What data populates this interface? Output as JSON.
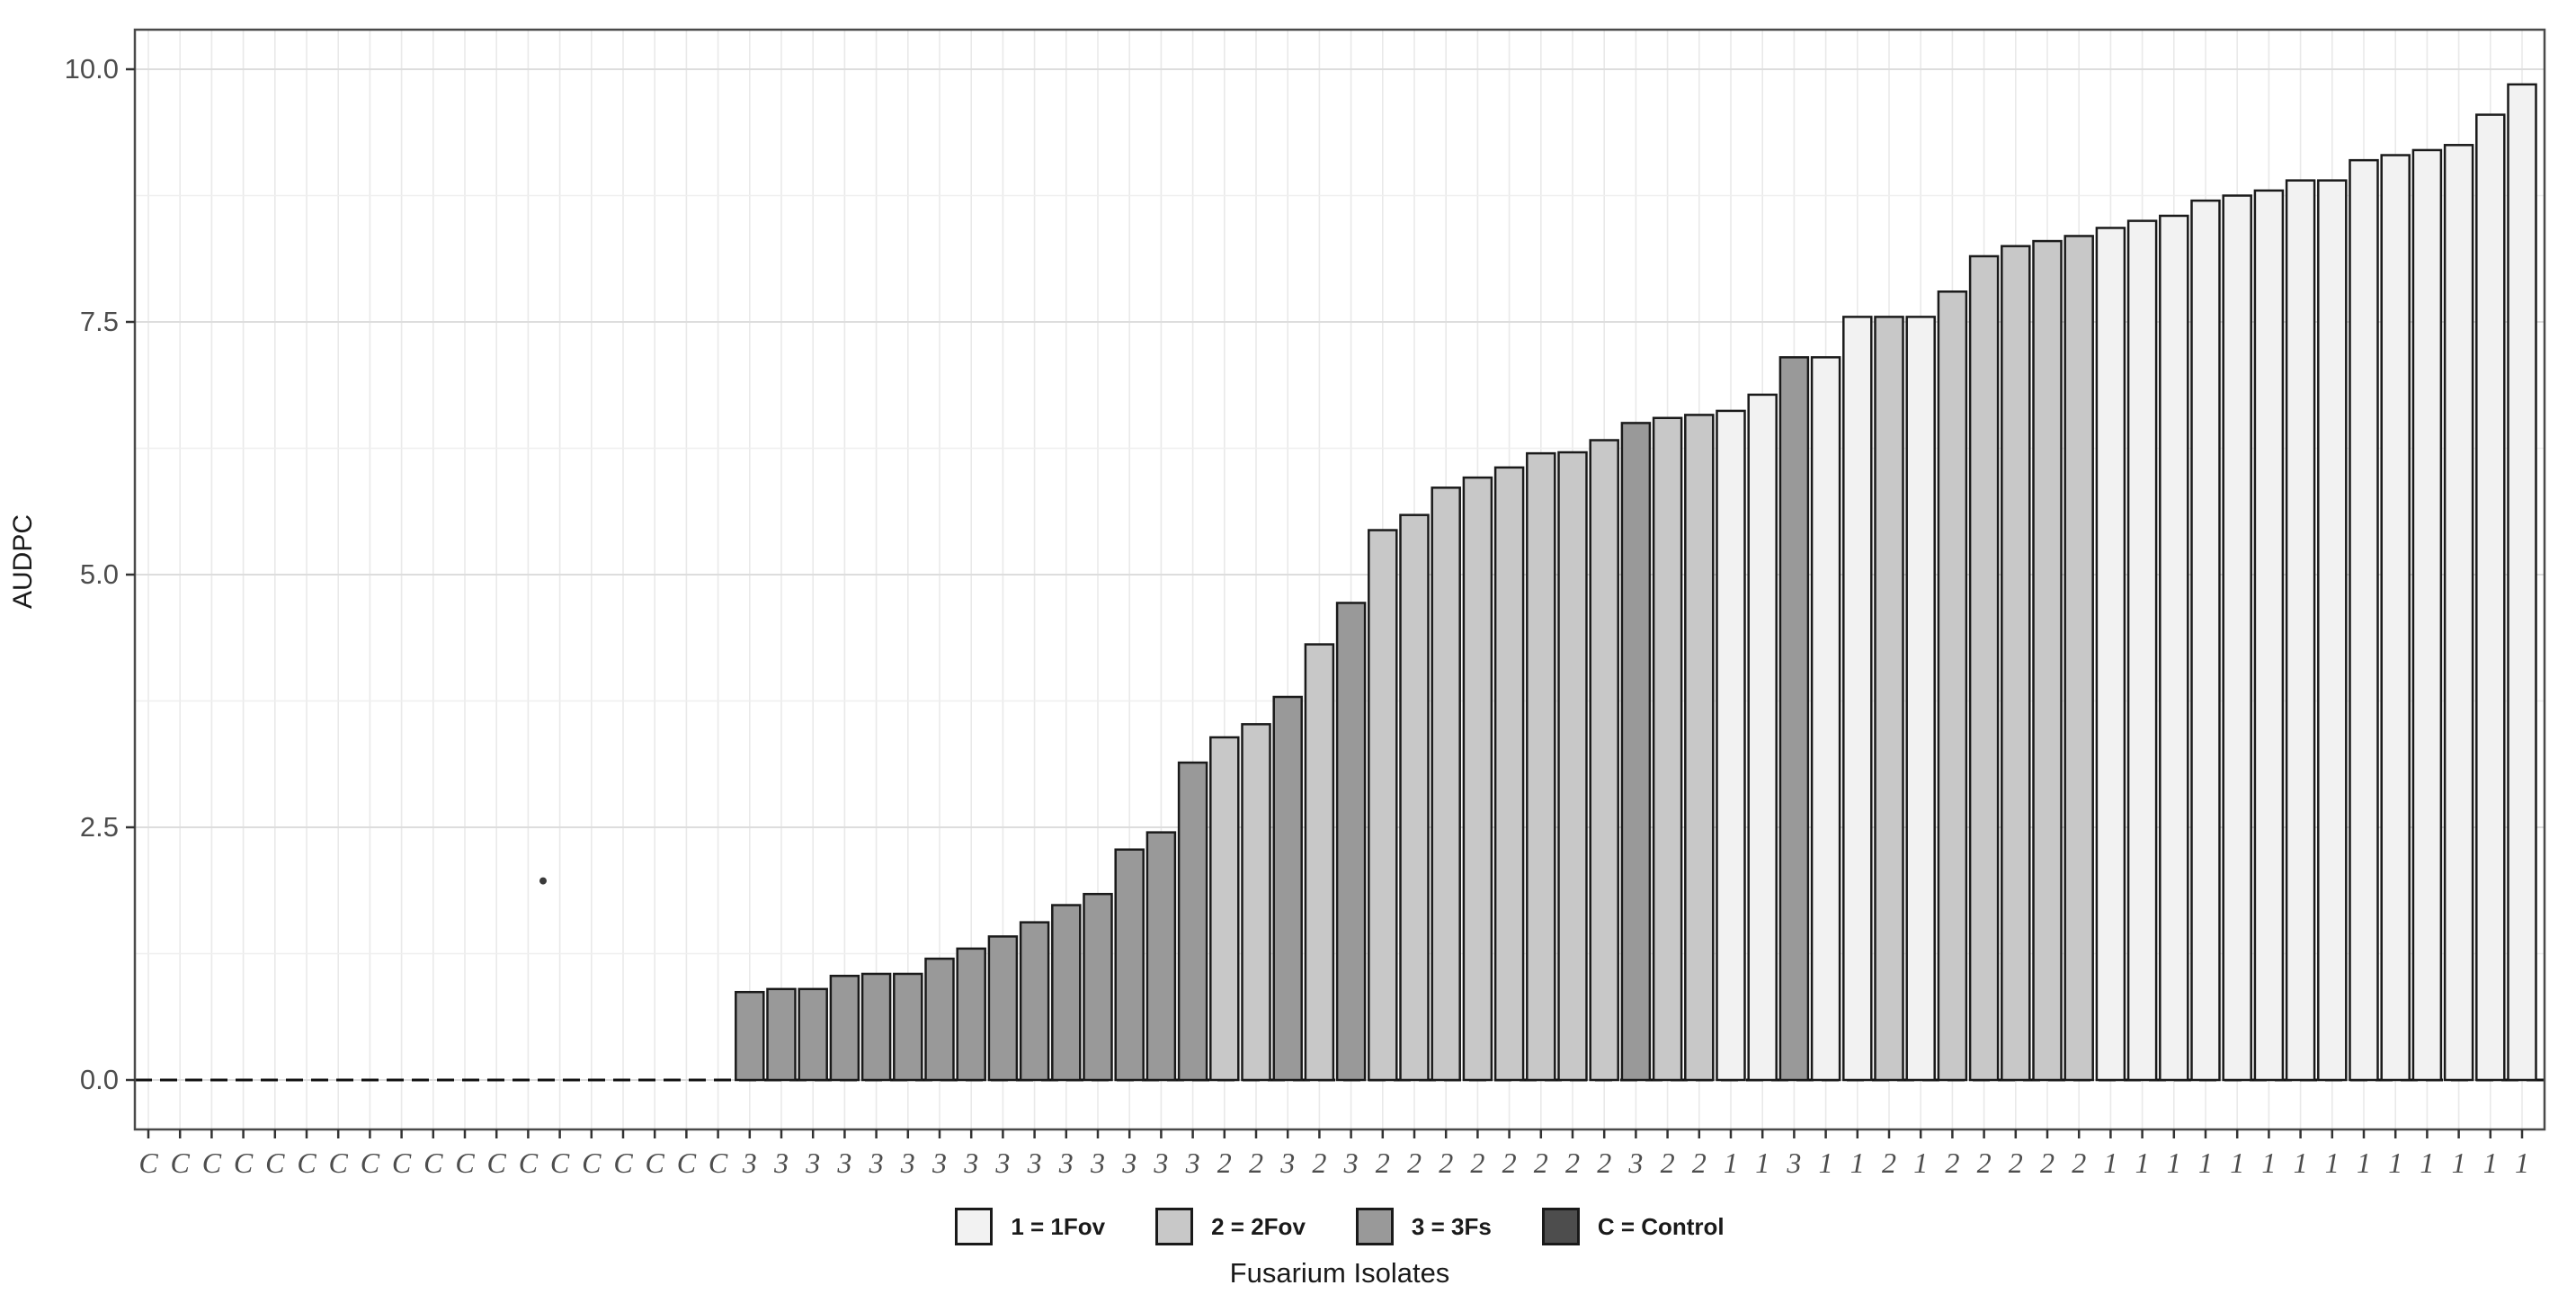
{
  "axes": {
    "y_label": "AUDPC",
    "x_label": "Fusarium Isolates",
    "y_ticks": [
      "0.0",
      "2.5",
      "5.0",
      "7.5",
      "10.0"
    ],
    "y_tick_values": [
      0,
      2.5,
      5.0,
      7.5,
      10.0
    ]
  },
  "legend": {
    "items": [
      {
        "label": "1 = 1Fov",
        "color": "#F2F2F2"
      },
      {
        "label": "2 = 2Fov",
        "color": "#C8C8C8"
      },
      {
        "label": "3 = 3Fs",
        "color": "#999999"
      },
      {
        "label": "C = Control",
        "color": "#4D4D4D"
      }
    ]
  },
  "chart_data": {
    "type": "bar",
    "title": "",
    "xlabel": "Fusarium Isolates",
    "ylabel": "AUDPC",
    "ylim": [
      -0.5,
      10.4
    ],
    "y_major_gridlines": [
      0,
      2.5,
      5.0,
      7.5,
      10.0
    ],
    "y_minor_gridlines": [
      1.25,
      3.75,
      6.25,
      8.75
    ],
    "grid": "on",
    "legend_position": "bottom",
    "zero_line_style": "dashed",
    "group_colors": {
      "1": "#F2F2F2",
      "2": "#C8C8C8",
      "3": "#999999",
      "C": "#4D4D4D"
    },
    "bar_stroke_color": "#1a1a1a",
    "categories": [
      "C",
      "C",
      "C",
      "C",
      "C",
      "C",
      "C",
      "C",
      "C",
      "C",
      "C",
      "C",
      "C",
      "C",
      "C",
      "C",
      "C",
      "C",
      "C",
      "3",
      "3",
      "3",
      "3",
      "3",
      "3",
      "3",
      "3",
      "3",
      "3",
      "3",
      "3",
      "3",
      "3",
      "3",
      "2",
      "2",
      "3",
      "2",
      "3",
      "2",
      "2",
      "2",
      "2",
      "2",
      "2",
      "2",
      "2",
      "3",
      "2",
      "2",
      "1",
      "1",
      "3",
      "1",
      "1",
      "2",
      "1",
      "2",
      "2",
      "2",
      "2",
      "2",
      "1",
      "1",
      "1",
      "1",
      "1",
      "1",
      "1",
      "1",
      "1",
      "1",
      "1",
      "1",
      "1",
      "1"
    ],
    "values": [
      0,
      0,
      0,
      0,
      0,
      0,
      0,
      0,
      0,
      0,
      0,
      0,
      0,
      0,
      0,
      0,
      0,
      0,
      0,
      0.87,
      0.9,
      0.9,
      1.03,
      1.05,
      1.05,
      1.2,
      1.3,
      1.42,
      1.56,
      1.73,
      1.84,
      2.28,
      2.45,
      3.14,
      3.39,
      3.52,
      3.79,
      4.31,
      4.72,
      5.44,
      5.59,
      5.86,
      5.96,
      6.06,
      6.2,
      6.21,
      6.33,
      6.5,
      6.55,
      6.58,
      6.62,
      6.78,
      7.15,
      7.15,
      7.55,
      7.55,
      7.55,
      7.8,
      8.15,
      8.25,
      8.3,
      8.35,
      8.43,
      8.5,
      8.55,
      8.7,
      8.75,
      8.8,
      8.9,
      8.9,
      9.1,
      9.15,
      9.2,
      9.25,
      9.55,
      9.85
    ],
    "outlier_point": {
      "between_bars": [
        13,
        14
      ],
      "value": 1.97
    }
  }
}
